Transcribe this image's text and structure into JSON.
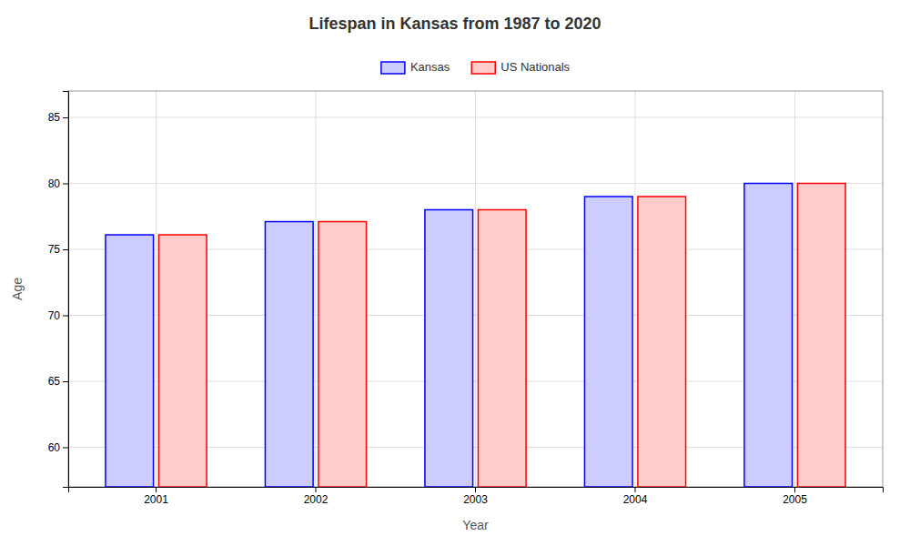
{
  "chart_data": {
    "type": "bar",
    "title": "Lifespan in Kansas from 1987 to 2020",
    "x_label": "Year",
    "y_label": "Age",
    "categories": [
      "2001",
      "2002",
      "2003",
      "2004",
      "2005"
    ],
    "series": [
      {
        "name": "Kansas",
        "color": "#0000ff",
        "values": [
          76.1,
          77.1,
          78.0,
          79.0,
          80.0
        ]
      },
      {
        "name": "US Nationals",
        "color": "#ff0000",
        "values": [
          76.1,
          77.1,
          78.0,
          79.0,
          80.0
        ]
      }
    ],
    "ylim": [
      57,
      87
    ],
    "yticks": [
      60,
      65,
      70,
      75,
      80,
      85
    ],
    "grid": true,
    "legend": "top"
  }
}
